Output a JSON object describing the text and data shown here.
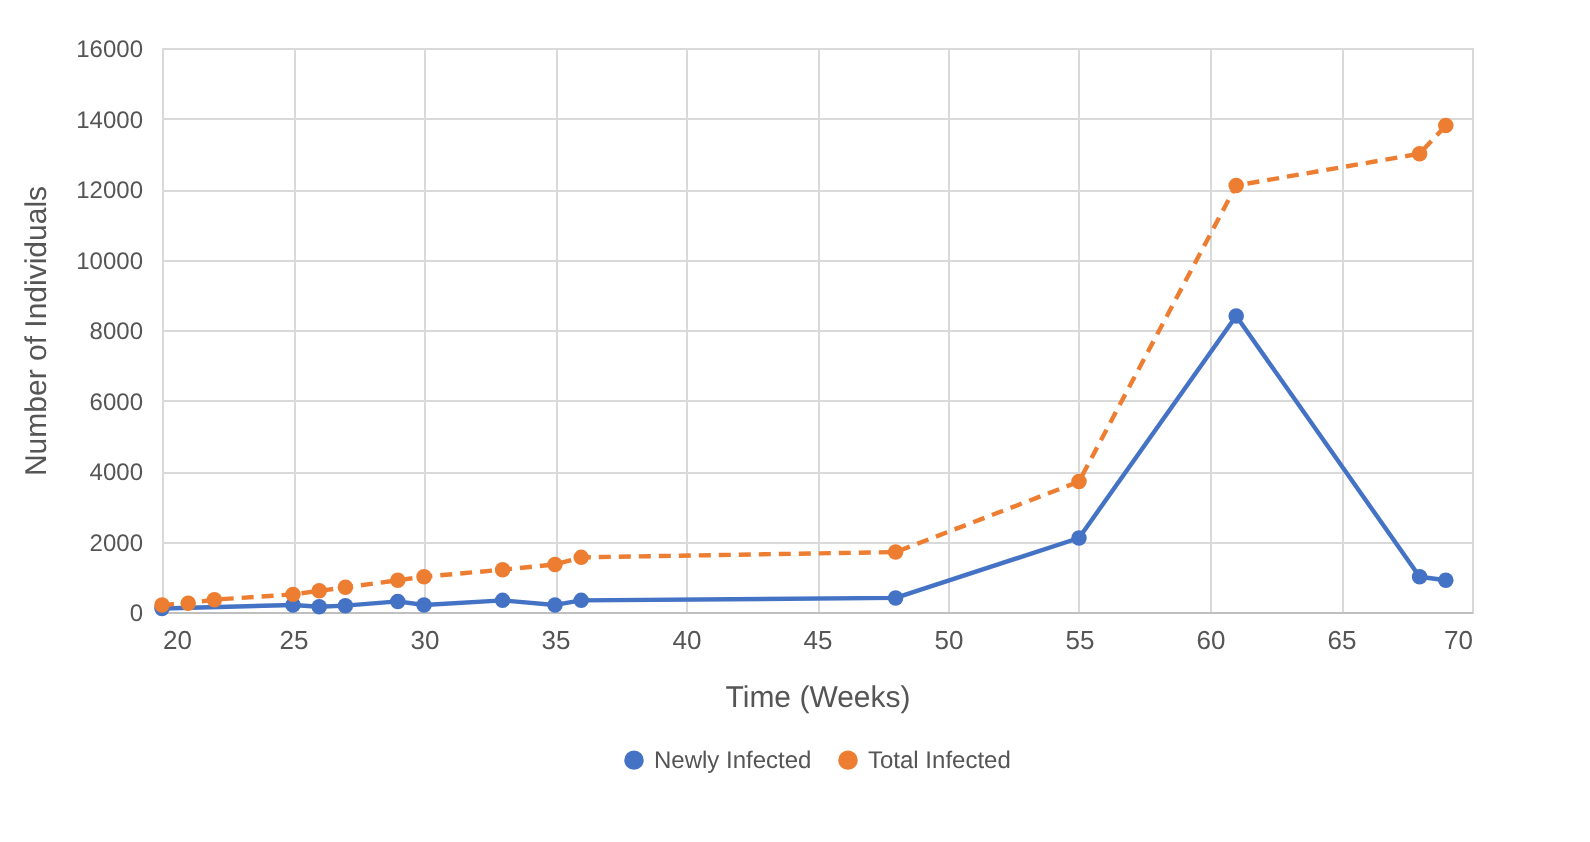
{
  "chart_data": {
    "type": "line",
    "xlabel": "Time  (Weeks)",
    "ylabel": "Number of Individuals",
    "xlim": [
      20,
      70
    ],
    "xticks": [
      20,
      25,
      30,
      35,
      40,
      45,
      50,
      55,
      60,
      65,
      70
    ],
    "ylim": [
      0,
      16000
    ],
    "yticks": [
      0,
      2000,
      4000,
      6000,
      8000,
      10000,
      12000,
      14000,
      16000
    ],
    "grid": true,
    "legend": "bottom",
    "marker": "circle",
    "series": [
      {
        "name": "Newly Infected",
        "color": "#4472c4",
        "line_style": "solid",
        "x": [
          20,
          25,
          26,
          27,
          29,
          30,
          33,
          35,
          36,
          48,
          55,
          61,
          68,
          69
        ],
        "values": [
          100,
          200,
          150,
          180,
          300,
          200,
          330,
          200,
          330,
          400,
          2100,
          8400,
          1000,
          900
        ]
      },
      {
        "name": "Total Infected",
        "color": "#ed7d31",
        "line_style": "dashed",
        "x": [
          20,
          21,
          22,
          25,
          26,
          27,
          29,
          30,
          33,
          35,
          36,
          48,
          55,
          61,
          68,
          69
        ],
        "values": [
          200,
          250,
          350,
          500,
          600,
          700,
          900,
          1000,
          1200,
          1350,
          1550,
          1700,
          3700,
          12100,
          13000,
          13800
        ]
      }
    ]
  }
}
